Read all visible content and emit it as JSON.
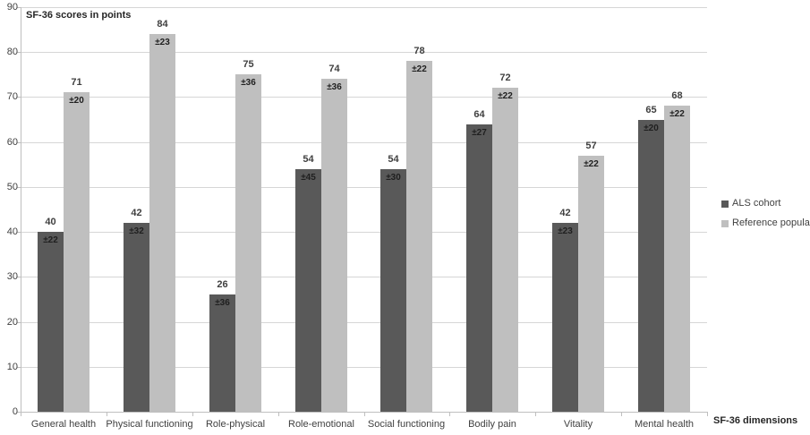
{
  "chart_data": {
    "type": "bar",
    "ylabel": "SF-36 scores in points",
    "xlabel": "SF-36 dimensions",
    "categories": [
      "General health",
      "Physical functioning",
      "Role-physical",
      "Role-emotional",
      "Social functioning",
      "Bodily pain",
      "Vitality",
      "Mental health"
    ],
    "series": [
      {
        "name": "ALS cohort",
        "color": "#595959",
        "values": [
          40,
          42,
          26,
          54,
          54,
          64,
          42,
          65
        ],
        "errors": [
          22,
          32,
          36,
          45,
          30,
          27,
          23,
          20
        ]
      },
      {
        "name": "Reference population",
        "color": "#bfbfbf",
        "values": [
          71,
          84,
          75,
          74,
          78,
          72,
          57,
          68
        ],
        "errors": [
          20,
          23,
          36,
          36,
          22,
          22,
          22,
          22
        ]
      }
    ],
    "error_prefix": "±",
    "ylim": [
      0,
      90
    ],
    "ytick_step": 10,
    "grid": true,
    "legend_position": "right"
  },
  "colors": {
    "gridline": "#d6d6d6",
    "axis": "#bfbfbf",
    "label_text": "#404040",
    "background": "#ffffff"
  }
}
